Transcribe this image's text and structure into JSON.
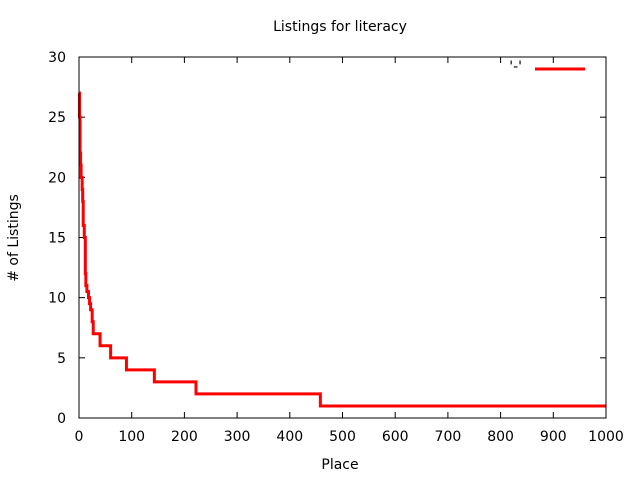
{
  "chart_data": {
    "type": "line",
    "title": "Listings for literacy",
    "xlabel": "Place",
    "ylabel": "# of Listings",
    "xlim": [
      0,
      1000
    ],
    "ylim": [
      0,
      30
    ],
    "x_ticks": [
      0,
      100,
      200,
      300,
      400,
      500,
      600,
      700,
      800,
      900,
      1000
    ],
    "y_ticks": [
      0,
      5,
      10,
      15,
      20,
      25,
      30
    ],
    "legend": {
      "position": "top-right",
      "label": "'-'"
    },
    "series": [
      {
        "name": "'-'",
        "color": "#ff0000",
        "step": true,
        "x": [
          0,
          1,
          2,
          3,
          4,
          6,
          7,
          8,
          10,
          12,
          13,
          15,
          18,
          20,
          22,
          25,
          27,
          35,
          40,
          50,
          58,
          60,
          88,
          90,
          140,
          143,
          218,
          222,
          455,
          458,
          1000
        ],
        "y": [
          27,
          25,
          22,
          21,
          20,
          19,
          18,
          16,
          15,
          12,
          11,
          10.5,
          10,
          9.5,
          9,
          8,
          7,
          7,
          6,
          6,
          6,
          5,
          5,
          4,
          4,
          3,
          3,
          2,
          2,
          1,
          1
        ]
      }
    ]
  }
}
